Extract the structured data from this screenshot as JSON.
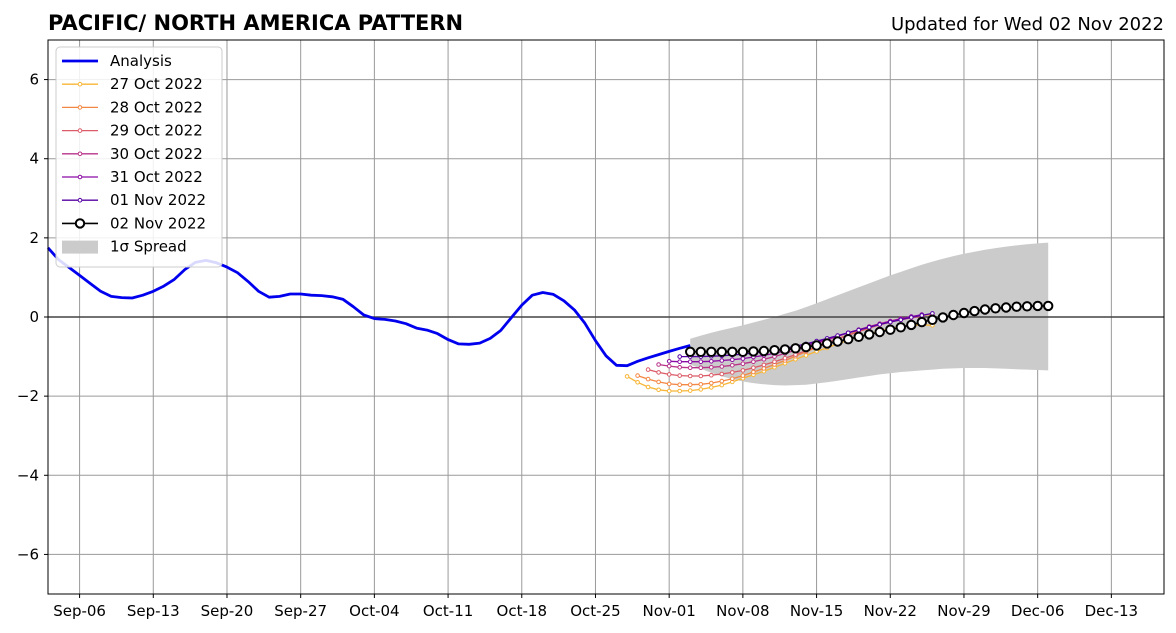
{
  "chart_data": {
    "type": "line",
    "title": "PACIFIC/ NORTH AMERICA PATTERN",
    "subtitle": "Updated for Wed 02 Nov 2022",
    "xlabel": "",
    "ylabel": "",
    "x_range": [
      "2022-09-03",
      "2022-12-18"
    ],
    "ylim": [
      -7,
      7
    ],
    "grid": true,
    "legend_position": "top-left",
    "x_ticks": [
      {
        "date": "2022-09-06",
        "label": "Sep-06"
      },
      {
        "date": "2022-09-13",
        "label": "Sep-13"
      },
      {
        "date": "2022-09-20",
        "label": "Sep-20"
      },
      {
        "date": "2022-09-27",
        "label": "Sep-27"
      },
      {
        "date": "2022-10-04",
        "label": "Oct-04"
      },
      {
        "date": "2022-10-11",
        "label": "Oct-11"
      },
      {
        "date": "2022-10-18",
        "label": "Oct-18"
      },
      {
        "date": "2022-10-25",
        "label": "Oct-25"
      },
      {
        "date": "2022-11-01",
        "label": "Nov-01"
      },
      {
        "date": "2022-11-08",
        "label": "Nov-08"
      },
      {
        "date": "2022-11-15",
        "label": "Nov-15"
      },
      {
        "date": "2022-11-22",
        "label": "Nov-22"
      },
      {
        "date": "2022-11-29",
        "label": "Nov-29"
      },
      {
        "date": "2022-12-06",
        "label": "Dec-06"
      },
      {
        "date": "2022-12-13",
        "label": "Dec-13"
      }
    ],
    "y_ticks": [
      {
        "value": 6,
        "label": "6"
      },
      {
        "value": 4,
        "label": "4"
      },
      {
        "value": 2,
        "label": "2"
      },
      {
        "value": 0,
        "label": "0"
      },
      {
        "value": -2,
        "label": "−2"
      },
      {
        "value": -4,
        "label": "−4"
      },
      {
        "value": -6,
        "label": "−6"
      }
    ],
    "analysis": {
      "name": "Analysis",
      "color": "#0000ee",
      "start_date": "2022-09-03",
      "values": [
        1.75,
        1.45,
        1.25,
        1.05,
        0.85,
        0.65,
        0.52,
        0.49,
        0.48,
        0.55,
        0.65,
        0.78,
        0.95,
        1.2,
        1.38,
        1.43,
        1.37,
        1.26,
        1.12,
        0.9,
        0.65,
        0.5,
        0.52,
        0.58,
        0.58,
        0.55,
        0.54,
        0.51,
        0.45,
        0.26,
        0.05,
        -0.04,
        -0.06,
        -0.1,
        -0.17,
        -0.28,
        -0.33,
        -0.42,
        -0.57,
        -0.68,
        -0.69,
        -0.66,
        -0.54,
        -0.34,
        -0.02,
        0.3,
        0.55,
        0.62,
        0.57,
        0.41,
        0.18,
        -0.16,
        -0.6,
        -0.98,
        -1.22,
        -1.23,
        -1.12,
        -1.03,
        -0.95,
        -0.87,
        -0.79,
        -0.72
      ]
    },
    "forecasts": [
      {
        "name": "27 Oct 2022",
        "color": "#f7b536",
        "start_date": "2022-10-28",
        "values": [
          -1.5,
          -1.65,
          -1.77,
          -1.84,
          -1.87,
          -1.87,
          -1.86,
          -1.83,
          -1.78,
          -1.72,
          -1.64,
          -1.55,
          -1.46,
          -1.37,
          -1.27,
          -1.17,
          -1.07,
          -0.97,
          -0.87,
          -0.78,
          -0.68,
          -0.59,
          -0.5,
          -0.42,
          -0.35,
          -0.29,
          -0.24,
          -0.21,
          -0.2,
          -0.21
        ]
      },
      {
        "name": "28 Oct 2022",
        "color": "#f38744",
        "start_date": "2022-10-29",
        "values": [
          -1.48,
          -1.57,
          -1.64,
          -1.69,
          -1.71,
          -1.71,
          -1.7,
          -1.67,
          -1.62,
          -1.56,
          -1.48,
          -1.39,
          -1.3,
          -1.2,
          -1.1,
          -0.99,
          -0.88,
          -0.77,
          -0.66,
          -0.55,
          -0.45,
          -0.35,
          -0.26,
          -0.18,
          -0.11,
          -0.05,
          0.0,
          0.04,
          0.06
        ]
      },
      {
        "name": "29 Oct 2022",
        "color": "#db5c68",
        "start_date": "2022-10-30",
        "values": [
          -1.33,
          -1.4,
          -1.45,
          -1.48,
          -1.49,
          -1.49,
          -1.47,
          -1.44,
          -1.4,
          -1.35,
          -1.28,
          -1.21,
          -1.13,
          -1.04,
          -0.95,
          -0.85,
          -0.75,
          -0.65,
          -0.55,
          -0.46,
          -0.37,
          -0.28,
          -0.2,
          -0.13,
          -0.07,
          -0.02,
          0.02
        ]
      },
      {
        "name": "30 Oct 2022",
        "color": "#b83289",
        "start_date": "2022-10-31",
        "values": [
          -1.2,
          -1.24,
          -1.27,
          -1.28,
          -1.28,
          -1.27,
          -1.25,
          -1.22,
          -1.18,
          -1.13,
          -1.07,
          -1.0,
          -0.92,
          -0.84,
          -0.76,
          -0.67,
          -0.58,
          -0.49,
          -0.4,
          -0.32,
          -0.24,
          -0.17,
          -0.1,
          -0.04,
          0.01,
          0.05
        ]
      },
      {
        "name": "31 Oct 2022",
        "color": "#8b0aa5",
        "start_date": "2022-11-01",
        "values": [
          -1.12,
          -1.13,
          -1.13,
          -1.13,
          -1.12,
          -1.1,
          -1.08,
          -1.05,
          -1.01,
          -0.97,
          -0.92,
          -0.86,
          -0.79,
          -0.72,
          -0.64,
          -0.56,
          -0.48,
          -0.4,
          -0.32,
          -0.25,
          -0.18,
          -0.11,
          -0.05,
          0.01,
          0.06
        ]
      },
      {
        "name": "01 Nov 2022",
        "color": "#5402a3",
        "start_date": "2022-11-02",
        "values": [
          -1.0,
          -1.0,
          -1.0,
          -0.99,
          -0.98,
          -0.96,
          -0.94,
          -0.91,
          -0.88,
          -0.84,
          -0.79,
          -0.74,
          -0.68,
          -0.61,
          -0.54,
          -0.47,
          -0.4,
          -0.33,
          -0.26,
          -0.19,
          -0.13,
          -0.07,
          -0.01,
          0.04,
          0.09
        ]
      }
    ],
    "latest": {
      "name": "02 Nov 2022",
      "color": "#000000",
      "start_date": "2022-11-03",
      "values": [
        -0.88,
        -0.88,
        -0.88,
        -0.88,
        -0.88,
        -0.88,
        -0.87,
        -0.86,
        -0.84,
        -0.82,
        -0.79,
        -0.76,
        -0.72,
        -0.67,
        -0.62,
        -0.56,
        -0.5,
        -0.44,
        -0.38,
        -0.32,
        -0.26,
        -0.2,
        -0.13,
        -0.07,
        -0.01,
        0.05,
        0.1,
        0.15,
        0.19,
        0.22,
        0.24,
        0.26,
        0.27,
        0.28,
        0.28
      ]
    },
    "spread": {
      "name": "1σ Spread",
      "color": "#cbcbcb",
      "start_date": "2022-11-03",
      "upper": [
        -0.55,
        -0.47,
        -0.4,
        -0.33,
        -0.27,
        -0.21,
        -0.14,
        -0.07,
        0.0,
        0.08,
        0.16,
        0.25,
        0.35,
        0.45,
        0.55,
        0.65,
        0.75,
        0.85,
        0.95,
        1.05,
        1.14,
        1.23,
        1.32,
        1.4,
        1.47,
        1.54,
        1.6,
        1.65,
        1.7,
        1.74,
        1.78,
        1.81,
        1.84,
        1.86,
        1.88
      ],
      "lower": [
        -1.2,
        -1.31,
        -1.41,
        -1.5,
        -1.57,
        -1.63,
        -1.67,
        -1.7,
        -1.72,
        -1.73,
        -1.72,
        -1.71,
        -1.68,
        -1.65,
        -1.61,
        -1.57,
        -1.53,
        -1.49,
        -1.45,
        -1.42,
        -1.39,
        -1.37,
        -1.35,
        -1.33,
        -1.31,
        -1.3,
        -1.29,
        -1.29,
        -1.29,
        -1.3,
        -1.31,
        -1.32,
        -1.33,
        -1.34,
        -1.35
      ]
    }
  }
}
